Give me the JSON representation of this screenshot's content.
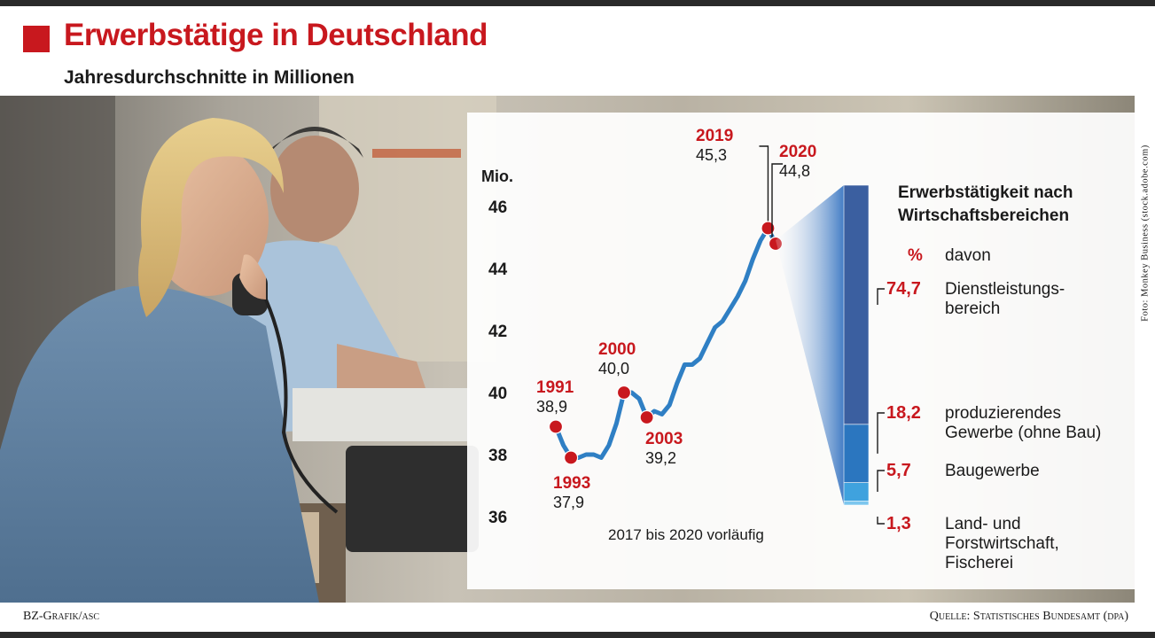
{
  "header": {
    "title": "Erwerbstätige in Deutschland",
    "subtitle": "Jahresdurchschnitte in Millionen"
  },
  "photo_credit": "Foto: Monkey Business (stock.adobe.com)",
  "footer": {
    "credit": "BZ-Grafik/asc",
    "source": "Quelle: Statistisches Bundesamt (dpa)"
  },
  "colors": {
    "accent_red": "#c8181e",
    "line_blue": "#2f7fc4",
    "bar_dark": "#3b5fa0",
    "bar_mid": "#2b76bf",
    "bar_light": "#3fa2de",
    "bar_lightest": "#7cc6ee"
  },
  "chart_data": [
    {
      "type": "line",
      "unit_label": "Mio.",
      "ylim": [
        36,
        46
      ],
      "yticks": [
        36,
        38,
        40,
        42,
        44,
        46
      ],
      "x": [
        1991,
        1992,
        1993,
        1994,
        1995,
        1996,
        1997,
        1998,
        1999,
        2000,
        2001,
        2002,
        2003,
        2004,
        2005,
        2006,
        2007,
        2008,
        2009,
        2010,
        2011,
        2012,
        2013,
        2014,
        2015,
        2016,
        2017,
        2018,
        2019,
        2020
      ],
      "values": [
        38.9,
        38.3,
        37.9,
        37.9,
        38.0,
        38.0,
        37.9,
        38.3,
        39.0,
        40.0,
        40.0,
        39.8,
        39.2,
        39.4,
        39.3,
        39.6,
        40.3,
        40.9,
        40.9,
        41.1,
        41.6,
        42.1,
        42.3,
        42.7,
        43.1,
        43.6,
        44.3,
        44.9,
        45.3,
        44.8
      ],
      "annotations": [
        {
          "year": "1991",
          "value": "38,9"
        },
        {
          "year": "1993",
          "value": "37,9"
        },
        {
          "year": "2000",
          "value": "40,0"
        },
        {
          "year": "2003",
          "value": "39,2"
        },
        {
          "year": "2019",
          "value": "45,3"
        },
        {
          "year": "2020",
          "value": "44,8"
        }
      ],
      "note": "2017 bis 2020 vorläufig",
      "grid": false
    },
    {
      "type": "bar",
      "title_line1": "Erwerbstätigkeit nach",
      "title_line2": "Wirtschaftsbereichen",
      "unit": "%",
      "unit_label": "davon",
      "stacked": true,
      "segments": [
        {
          "value": 74.7,
          "label": "74,7",
          "name_lines": [
            "Dienstleistungs-",
            "bereich"
          ]
        },
        {
          "value": 18.2,
          "label": "18,2",
          "name_lines": [
            "produzierendes",
            "Gewerbe (ohne Bau)"
          ]
        },
        {
          "value": 5.7,
          "label": "5,7",
          "name_lines": [
            "Baugewerbe"
          ]
        },
        {
          "value": 1.3,
          "label": "1,3",
          "name_lines": [
            "Land- und",
            "Forstwirtschaft,",
            "Fischerei"
          ]
        }
      ]
    }
  ]
}
